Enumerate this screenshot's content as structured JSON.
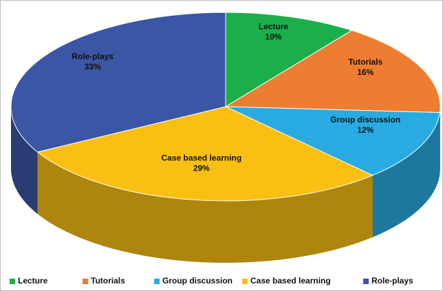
{
  "chart_data": {
    "type": "pie3d",
    "categories": [
      "Lecture",
      "Tutorials",
      "Group discussion",
      "Case based learning",
      "Role-plays"
    ],
    "values": [
      10,
      16,
      12,
      29,
      33
    ],
    "value_labels": [
      "10%",
      "16%",
      "12%",
      "29%",
      "33%"
    ],
    "colors": [
      "#1aaf4b",
      "#ed7d31",
      "#29abe2",
      "#f9c013",
      "#3a56a5"
    ],
    "legend": "bottom"
  }
}
